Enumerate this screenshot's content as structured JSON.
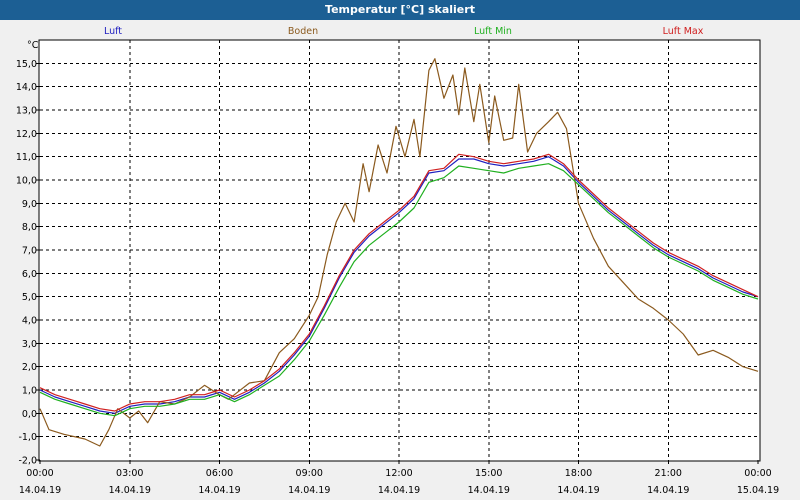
{
  "chart_data": {
    "type": "line",
    "title": "Temperatur [°C] skaliert",
    "unit_label": "°C",
    "xlabel": "",
    "ylabel": "°C",
    "ylim": [
      -2.0,
      16.0
    ],
    "xlim": [
      0,
      24
    ],
    "y_ticks": [
      "-2,0",
      "-1,0",
      "0,0",
      "1,0",
      "2,0",
      "3,0",
      "4,0",
      "5,0",
      "6,0",
      "7,0",
      "8,0",
      "9,0",
      "10,0",
      "11,0",
      "12,0",
      "13,0",
      "14,0",
      "15,0"
    ],
    "x_ticks": [
      {
        "t": 0,
        "time": "00:00",
        "date": "14.04.19"
      },
      {
        "t": 3,
        "time": "03:00",
        "date": "14.04.19"
      },
      {
        "t": 6,
        "time": "06:00",
        "date": "14.04.19"
      },
      {
        "t": 9,
        "time": "09:00",
        "date": "14.04.19"
      },
      {
        "t": 12,
        "time": "12:00",
        "date": "14.04.19"
      },
      {
        "t": 15,
        "time": "15:00",
        "date": "14.04.19"
      },
      {
        "t": 18,
        "time": "18:00",
        "date": "14.04.19"
      },
      {
        "t": 21,
        "time": "21:00",
        "date": "14.04.19"
      },
      {
        "t": 24,
        "time": "00:00",
        "date": "15.04.19"
      }
    ],
    "grid": true,
    "legend_position": "top",
    "series": [
      {
        "name": "Luft",
        "color": "#2020c0",
        "x": [
          0,
          0.5,
          1,
          1.5,
          2,
          2.5,
          3,
          3.5,
          4,
          4.5,
          5,
          5.5,
          6,
          6.5,
          7,
          7.5,
          8,
          8.5,
          9,
          9.5,
          10,
          10.5,
          11,
          11.5,
          12,
          12.5,
          13,
          13.5,
          14,
          14.5,
          15,
          15.5,
          16,
          16.5,
          17,
          17.5,
          18,
          18.5,
          19,
          19.5,
          20,
          20.5,
          21,
          21.5,
          22,
          22.5,
          23,
          23.5,
          24
        ],
        "values": [
          1.0,
          0.7,
          0.5,
          0.3,
          0.1,
          0.0,
          0.3,
          0.4,
          0.4,
          0.5,
          0.7,
          0.7,
          0.9,
          0.6,
          0.9,
          1.3,
          1.8,
          2.5,
          3.3,
          4.5,
          5.8,
          6.9,
          7.6,
          8.1,
          8.6,
          9.2,
          10.3,
          10.4,
          10.9,
          10.9,
          10.7,
          10.6,
          10.7,
          10.8,
          11.0,
          10.6,
          9.9,
          9.3,
          8.7,
          8.2,
          7.7,
          7.2,
          6.8,
          6.5,
          6.2,
          5.8,
          5.5,
          5.2,
          5.0
        ]
      },
      {
        "name": "Boden",
        "color": "#8b5a1e",
        "x": [
          0,
          0.3,
          0.8,
          1.5,
          2,
          2.3,
          2.6,
          3,
          3.3,
          3.6,
          4,
          4.5,
          5,
          5.5,
          6,
          6.3,
          6.6,
          7,
          7.5,
          8,
          8.5,
          9,
          9.3,
          9.6,
          9.9,
          10.2,
          10.5,
          10.8,
          11,
          11.3,
          11.6,
          11.9,
          12.2,
          12.5,
          12.7,
          13,
          13.2,
          13.5,
          13.8,
          14,
          14.2,
          14.5,
          14.7,
          15,
          15.2,
          15.5,
          15.8,
          16,
          16.3,
          16.6,
          17,
          17.3,
          17.6,
          18,
          18.5,
          19,
          19.5,
          20,
          20.5,
          21,
          21.5,
          22,
          22.5,
          23,
          23.5,
          24
        ],
        "values": [
          0.2,
          -0.7,
          -0.9,
          -1.1,
          -1.4,
          -0.7,
          0.2,
          -0.2,
          0.1,
          -0.4,
          0.5,
          0.4,
          0.7,
          1.2,
          0.8,
          0.6,
          0.9,
          1.3,
          1.4,
          2.6,
          3.2,
          4.2,
          5.0,
          6.8,
          8.2,
          9.0,
          8.2,
          10.7,
          9.5,
          11.5,
          10.3,
          12.3,
          11.0,
          12.6,
          11.0,
          14.7,
          15.2,
          13.5,
          14.5,
          12.8,
          14.8,
          12.5,
          14.1,
          11.6,
          13.6,
          11.7,
          11.8,
          14.1,
          11.2,
          12.0,
          12.5,
          12.9,
          12.2,
          9.0,
          7.5,
          6.3,
          5.6,
          4.9,
          4.5,
          4.0,
          3.4,
          2.5,
          2.7,
          2.4,
          2.0,
          1.8
        ]
      },
      {
        "name": "Luft Min",
        "color": "#20b020",
        "x": [
          0,
          0.5,
          1,
          1.5,
          2,
          2.5,
          3,
          3.5,
          4,
          4.5,
          5,
          5.5,
          6,
          6.5,
          7,
          7.5,
          8,
          8.5,
          9,
          9.5,
          10,
          10.5,
          11,
          11.5,
          12,
          12.5,
          13,
          13.5,
          14,
          14.5,
          15,
          15.5,
          16,
          16.5,
          17,
          17.5,
          18,
          18.5,
          19,
          19.5,
          20,
          20.5,
          21,
          21.5,
          22,
          22.5,
          23,
          23.5,
          24
        ],
        "values": [
          0.9,
          0.6,
          0.4,
          0.2,
          0.0,
          -0.1,
          0.2,
          0.3,
          0.3,
          0.4,
          0.6,
          0.6,
          0.8,
          0.5,
          0.8,
          1.2,
          1.6,
          2.3,
          3.1,
          4.2,
          5.4,
          6.5,
          7.2,
          7.7,
          8.2,
          8.8,
          9.9,
          10.1,
          10.6,
          10.5,
          10.4,
          10.3,
          10.5,
          10.6,
          10.7,
          10.4,
          9.8,
          9.2,
          8.6,
          8.1,
          7.6,
          7.1,
          6.7,
          6.4,
          6.1,
          5.7,
          5.4,
          5.1,
          4.9
        ]
      },
      {
        "name": "Luft Max",
        "color": "#d02020",
        "x": [
          0,
          0.5,
          1,
          1.5,
          2,
          2.5,
          3,
          3.5,
          4,
          4.5,
          5,
          5.5,
          6,
          6.5,
          7,
          7.5,
          8,
          8.5,
          9,
          9.5,
          10,
          10.5,
          11,
          11.5,
          12,
          12.5,
          13,
          13.5,
          14,
          14.5,
          15,
          15.5,
          16,
          16.5,
          17,
          17.5,
          18,
          18.5,
          19,
          19.5,
          20,
          20.5,
          21,
          21.5,
          22,
          22.5,
          23,
          23.5,
          24
        ],
        "values": [
          1.1,
          0.8,
          0.6,
          0.4,
          0.2,
          0.1,
          0.4,
          0.5,
          0.5,
          0.6,
          0.8,
          0.8,
          1.0,
          0.7,
          1.0,
          1.4,
          1.9,
          2.6,
          3.4,
          4.6,
          5.9,
          7.0,
          7.7,
          8.2,
          8.7,
          9.3,
          10.4,
          10.5,
          11.1,
          11.0,
          10.8,
          10.7,
          10.8,
          10.9,
          11.1,
          10.7,
          10.0,
          9.4,
          8.8,
          8.3,
          7.8,
          7.3,
          6.9,
          6.6,
          6.3,
          5.9,
          5.6,
          5.3,
          5.0
        ]
      }
    ]
  }
}
